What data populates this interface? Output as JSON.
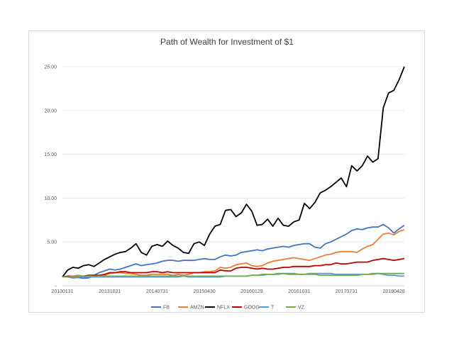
{
  "chart_data": {
    "type": "line",
    "title": "Path of Wealth for Investment of $1",
    "xlabel": "",
    "ylabel": "",
    "ylim": [
      0,
      25
    ],
    "grid": true,
    "legend_position": "bottom",
    "y_ticks": [
      "-",
      "5.00",
      "10.00",
      "15.00",
      "20.00",
      "25.00"
    ],
    "x_tick_labels": [
      "20130131",
      "20131031",
      "20140731",
      "20150430",
      "20160129",
      "20161031",
      "20170731",
      "20180428"
    ],
    "x": [
      "2013-01",
      "2013-02",
      "2013-03",
      "2013-04",
      "2013-05",
      "2013-06",
      "2013-07",
      "2013-08",
      "2013-09",
      "2013-10",
      "2013-11",
      "2013-12",
      "2014-01",
      "2014-02",
      "2014-03",
      "2014-04",
      "2014-05",
      "2014-06",
      "2014-07",
      "2014-08",
      "2014-09",
      "2014-10",
      "2014-11",
      "2014-12",
      "2015-01",
      "2015-02",
      "2015-03",
      "2015-04",
      "2015-05",
      "2015-06",
      "2015-07",
      "2015-08",
      "2015-09",
      "2015-10",
      "2015-11",
      "2015-12",
      "2016-01",
      "2016-02",
      "2016-03",
      "2016-04",
      "2016-05",
      "2016-06",
      "2016-07",
      "2016-08",
      "2016-09",
      "2016-10",
      "2016-11",
      "2016-12",
      "2017-01",
      "2017-02",
      "2017-03",
      "2017-04",
      "2017-05",
      "2017-06",
      "2017-07",
      "2017-08",
      "2017-09",
      "2017-10",
      "2017-11",
      "2017-12",
      "2018-01",
      "2018-02",
      "2018-03",
      "2018-04",
      "2018-05",
      "2018-06"
    ],
    "series": [
      {
        "name": "FB",
        "color": "#4472c4",
        "values": [
          1.0,
          1.0,
          0.9,
          0.95,
          0.85,
          0.9,
          1.2,
          1.5,
          1.7,
          1.9,
          1.8,
          1.9,
          2.1,
          2.3,
          2.5,
          2.3,
          2.4,
          2.5,
          2.6,
          2.8,
          2.9,
          2.9,
          2.8,
          2.9,
          2.9,
          2.9,
          3.0,
          3.1,
          3.0,
          3.0,
          3.3,
          3.5,
          3.4,
          3.5,
          3.8,
          3.9,
          4.0,
          4.1,
          4.0,
          4.2,
          4.3,
          4.4,
          4.5,
          4.4,
          4.6,
          4.7,
          4.8,
          4.8,
          4.4,
          4.3,
          4.8,
          5.0,
          5.3,
          5.6,
          5.9,
          6.3,
          6.5,
          6.4,
          6.6,
          6.7,
          6.7,
          7.0,
          6.6,
          6.0,
          6.5,
          6.9
        ]
      },
      {
        "name": "AMZN",
        "color": "#ed7d31",
        "values": [
          1.0,
          1.0,
          1.0,
          1.0,
          1.1,
          1.1,
          1.2,
          1.1,
          1.2,
          1.4,
          1.5,
          1.5,
          1.4,
          1.4,
          1.3,
          1.2,
          1.2,
          1.3,
          1.3,
          1.3,
          1.3,
          1.2,
          1.3,
          1.2,
          1.3,
          1.5,
          1.5,
          1.6,
          1.6,
          1.7,
          2.1,
          2.0,
          2.1,
          2.4,
          2.5,
          2.6,
          2.3,
          2.2,
          2.3,
          2.6,
          2.8,
          2.9,
          3.0,
          3.1,
          3.2,
          3.1,
          3.0,
          2.9,
          3.1,
          3.3,
          3.5,
          3.6,
          3.8,
          3.9,
          3.9,
          3.9,
          3.8,
          4.2,
          4.5,
          4.7,
          5.3,
          5.9,
          6.0,
          5.8,
          6.2,
          6.4
        ]
      },
      {
        "name": "NFLX",
        "color": "#000000",
        "values": [
          1.0,
          1.8,
          2.1,
          2.0,
          2.3,
          2.4,
          2.2,
          2.6,
          3.0,
          3.3,
          3.6,
          3.8,
          3.9,
          4.3,
          4.8,
          3.8,
          3.5,
          4.5,
          4.7,
          4.5,
          5.1,
          4.6,
          4.3,
          3.8,
          3.7,
          4.8,
          5.0,
          4.6,
          5.9,
          6.8,
          7.0,
          8.6,
          8.7,
          7.9,
          8.3,
          9.3,
          8.5,
          6.9,
          7.0,
          7.6,
          6.8,
          7.7,
          6.9,
          6.8,
          7.3,
          7.5,
          9.4,
          8.8,
          9.5,
          10.6,
          10.9,
          11.3,
          11.8,
          12.3,
          11.3,
          13.7,
          13.1,
          13.7,
          14.8,
          14.1,
          14.5,
          20.3,
          22.0,
          22.3,
          23.5,
          25.0
        ]
      },
      {
        "name": "GOOG",
        "color": "#c00000",
        "values": [
          1.0,
          1.1,
          1.1,
          1.1,
          1.1,
          1.2,
          1.2,
          1.2,
          1.3,
          1.5,
          1.5,
          1.6,
          1.6,
          1.5,
          1.5,
          1.5,
          1.5,
          1.6,
          1.6,
          1.5,
          1.6,
          1.5,
          1.5,
          1.5,
          1.5,
          1.5,
          1.5,
          1.5,
          1.5,
          1.5,
          1.8,
          1.7,
          1.7,
          2.0,
          2.1,
          2.1,
          2.0,
          1.9,
          2.0,
          1.9,
          1.9,
          2.0,
          2.1,
          2.1,
          2.2,
          2.2,
          2.2,
          2.2,
          2.3,
          2.3,
          2.4,
          2.4,
          2.6,
          2.5,
          2.5,
          2.6,
          2.7,
          2.7,
          2.7,
          2.9,
          3.0,
          3.1,
          3.0,
          2.9,
          3.0,
          3.1
        ]
      },
      {
        "name": "T",
        "color": "#5b9bd5",
        "values": [
          1.0,
          1.0,
          1.1,
          1.1,
          1.0,
          1.0,
          1.0,
          1.0,
          1.0,
          1.0,
          1.0,
          1.0,
          1.0,
          1.0,
          1.0,
          1.0,
          1.0,
          1.0,
          1.0,
          1.0,
          1.0,
          1.0,
          1.0,
          1.1,
          1.0,
          1.0,
          1.0,
          1.0,
          1.0,
          1.0,
          1.0,
          1.1,
          1.1,
          1.1,
          1.1,
          1.1,
          1.2,
          1.2,
          1.2,
          1.3,
          1.3,
          1.3,
          1.4,
          1.4,
          1.4,
          1.3,
          1.3,
          1.4,
          1.4,
          1.4,
          1.4,
          1.4,
          1.3,
          1.3,
          1.3,
          1.3,
          1.3,
          1.3,
          1.3,
          1.4,
          1.4,
          1.3,
          1.2,
          1.2,
          1.1,
          1.1
        ]
      },
      {
        "name": "VZ",
        "color": "#70ad47",
        "values": [
          1.0,
          1.0,
          1.1,
          1.2,
          1.1,
          1.1,
          1.1,
          1.1,
          1.1,
          1.1,
          1.1,
          1.1,
          1.1,
          1.1,
          1.1,
          1.1,
          1.1,
          1.1,
          1.1,
          1.1,
          1.1,
          1.1,
          1.1,
          1.1,
          1.1,
          1.1,
          1.1,
          1.1,
          1.1,
          1.1,
          1.1,
          1.1,
          1.1,
          1.1,
          1.1,
          1.1,
          1.2,
          1.2,
          1.3,
          1.3,
          1.3,
          1.4,
          1.4,
          1.3,
          1.3,
          1.3,
          1.3,
          1.3,
          1.3,
          1.2,
          1.2,
          1.2,
          1.2,
          1.2,
          1.2,
          1.2,
          1.2,
          1.3,
          1.3,
          1.3,
          1.4,
          1.4,
          1.4,
          1.4,
          1.4,
          1.4
        ]
      }
    ]
  }
}
